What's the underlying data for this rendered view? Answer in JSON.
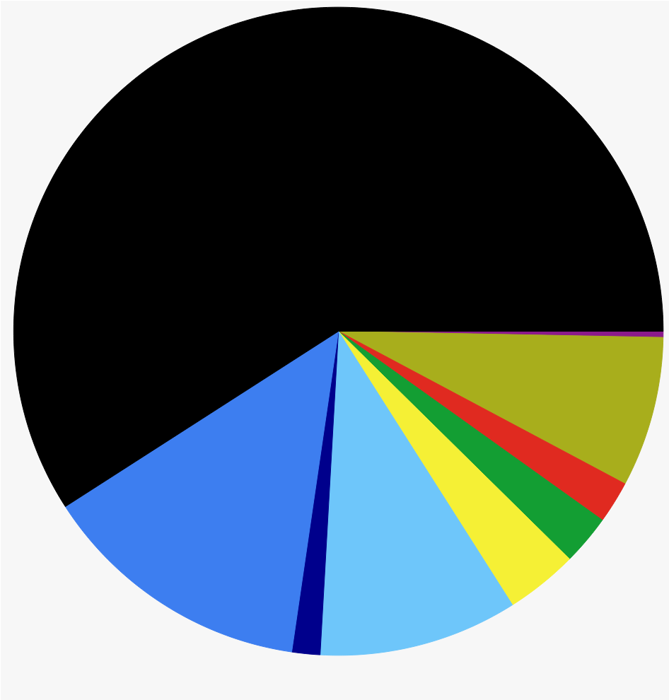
{
  "chart_data": {
    "type": "pie",
    "categories": [
      null,
      null,
      null,
      null,
      null,
      null,
      null,
      null,
      null
    ],
    "values": [
      0.3,
      7.5,
      2.1,
      2.5,
      3.6,
      9.9,
      1.4,
      13.6,
      59.1
    ],
    "colors": [
      "#8b1a8b",
      "#a8ae1c",
      "#e02a20",
      "#139e33",
      "#f5f035",
      "#6ec6fa",
      "#00008c",
      "#3d7ef0",
      "#000000"
    ]
  }
}
